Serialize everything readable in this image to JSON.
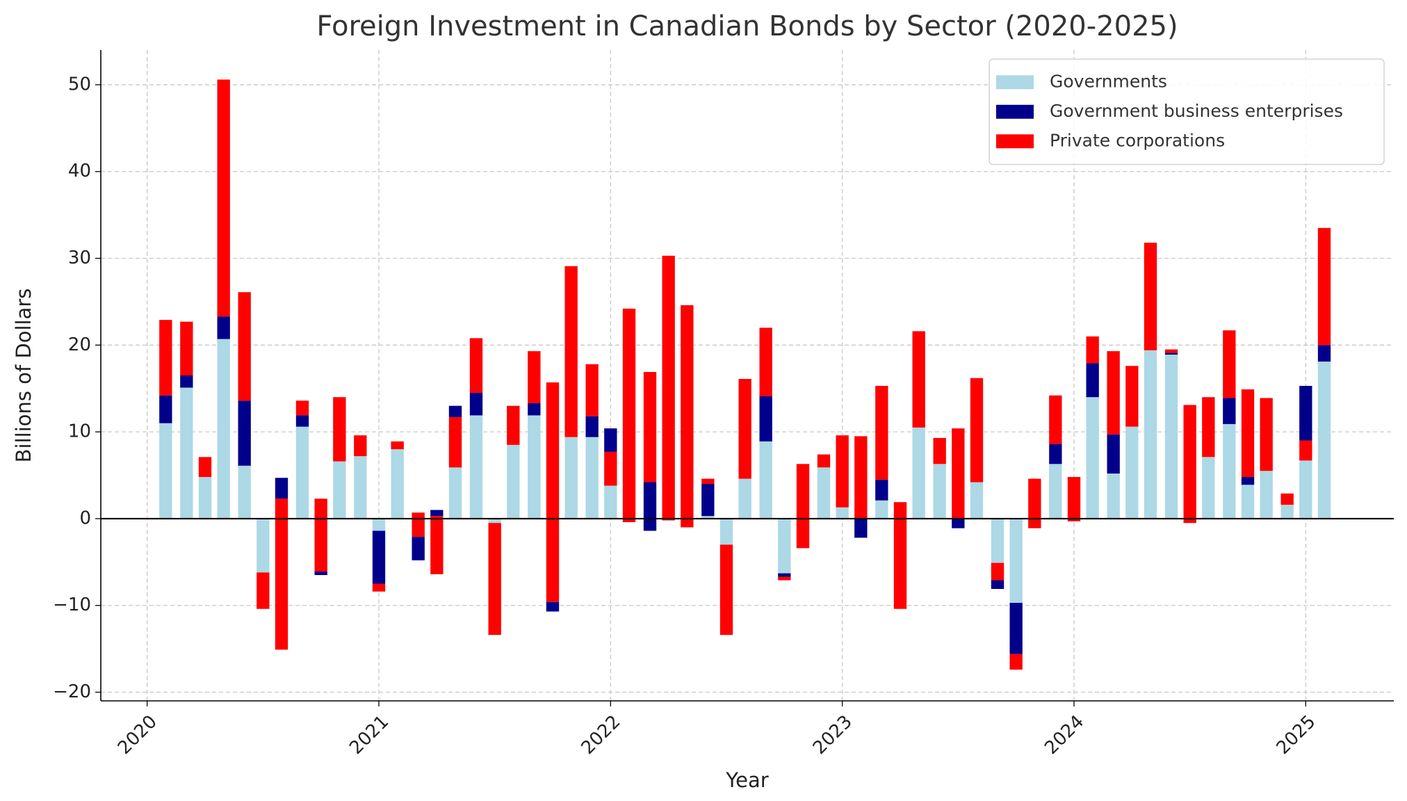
{
  "chart_data": {
    "type": "bar",
    "stacked": true,
    "title": "Foreign Investment in Canadian Bonds by Sector (2020-2025)",
    "x_label": "Year",
    "y_label": "Billions of Dollars",
    "x": [
      2020.08,
      2020.17,
      2020.25,
      2020.33,
      2020.42,
      2020.5,
      2020.58,
      2020.67,
      2020.75,
      2020.83,
      2020.92,
      2021.0,
      2021.08,
      2021.17,
      2021.25,
      2021.33,
      2021.42,
      2021.5,
      2021.58,
      2021.67,
      2021.75,
      2021.83,
      2021.92,
      2022.0,
      2022.08,
      2022.17,
      2022.25,
      2022.33,
      2022.42,
      2022.5,
      2022.58,
      2022.67,
      2022.75,
      2022.83,
      2022.92,
      2023.0,
      2023.08,
      2023.17,
      2023.25,
      2023.33,
      2023.42,
      2023.5,
      2023.58,
      2023.67,
      2023.75,
      2023.83,
      2023.92,
      2024.0,
      2024.08,
      2024.17,
      2024.25,
      2024.33,
      2024.42,
      2024.5,
      2024.58,
      2024.67,
      2024.75,
      2024.83,
      2024.92,
      2025.0,
      2025.08
    ],
    "series": [
      {
        "name": "Governments",
        "color": "#add8e6",
        "values": [
          11,
          15.1,
          4.8,
          20.7,
          6.1,
          -6.2,
          4.7,
          10.6,
          -6.5,
          6.6,
          7.2,
          -1.4,
          8.0,
          -4.8,
          1.0,
          13.0,
          11.9,
          -0.5,
          8.5,
          11.9,
          -10.7,
          9.4,
          9.4,
          10.4,
          -0.4,
          -1.4,
          -0.2,
          -1.0,
          0.3,
          -3.0,
          4.6,
          8.9,
          -6.3,
          -3.4,
          5.9,
          1.3,
          -2.2,
          2.1,
          1.9,
          10.5,
          6.3,
          -1.1,
          4.2,
          -8.1,
          -9.7,
          -1.1,
          6.3,
          -0.3,
          14.0,
          5.2,
          10.6,
          19.4,
          18.9,
          -0.5,
          7.1,
          10.9,
          3.9,
          5.5,
          1.6,
          15.3,
          18.1
        ]
      },
      {
        "name": "Government business enterprises",
        "color": "#00008b",
        "values": [
          3.2,
          1.4,
          0,
          2.6,
          7.5,
          0,
          -2.4,
          1.3,
          0.4,
          0,
          0,
          -6.1,
          0,
          2.7,
          -0.7,
          -1.3,
          2.6,
          0,
          0,
          1.4,
          1.1,
          0,
          2.4,
          -2.7,
          0,
          5.6,
          0,
          0,
          3.7,
          0,
          0,
          5.2,
          -0.4,
          0,
          0,
          0,
          2.2,
          2.4,
          0,
          0,
          0,
          1.1,
          0,
          1.0,
          -5.9,
          0,
          2.3,
          0,
          3.9,
          4.5,
          0,
          0,
          0.2,
          0,
          0,
          3.0,
          0.9,
          0,
          0,
          -6.3,
          1.9
        ]
      },
      {
        "name": "Private corporations",
        "color": "#ff0000",
        "values": [
          8.7,
          6.2,
          2.3,
          27.3,
          12.5,
          -4.2,
          -17.4,
          1.7,
          8.4,
          7.4,
          2.4,
          -0.9,
          0.9,
          2.8,
          -6.7,
          -5.8,
          6.3,
          -12.9,
          4.5,
          6.0,
          25.3,
          19.7,
          6.0,
          -3.9,
          24.6,
          12.7,
          30.5,
          25.6,
          0.6,
          -10.4,
          11.5,
          7.9,
          -0.4,
          9.7,
          1.5,
          8.3,
          9.5,
          10.8,
          -12.3,
          11.1,
          3.0,
          10.4,
          12.0,
          2.0,
          -1.8,
          5.7,
          5.6,
          5.1,
          3.1,
          9.6,
          7.0,
          12.4,
          0.4,
          13.6,
          6.9,
          7.8,
          10.1,
          8.4,
          1.3,
          -2.3,
          13.5
        ]
      }
    ],
    "xlim": [
      2019.8,
      2025.38
    ],
    "xticks": [
      2020,
      2021,
      2022,
      2023,
      2024,
      2025
    ],
    "ylim": [
      -21,
      54
    ],
    "yticks": [
      {
        "value": -20,
        "label": "−20"
      },
      {
        "value": -10,
        "label": "−10"
      },
      0,
      10,
      20,
      30,
      40,
      50
    ],
    "grid": true,
    "legend": "upper right"
  }
}
